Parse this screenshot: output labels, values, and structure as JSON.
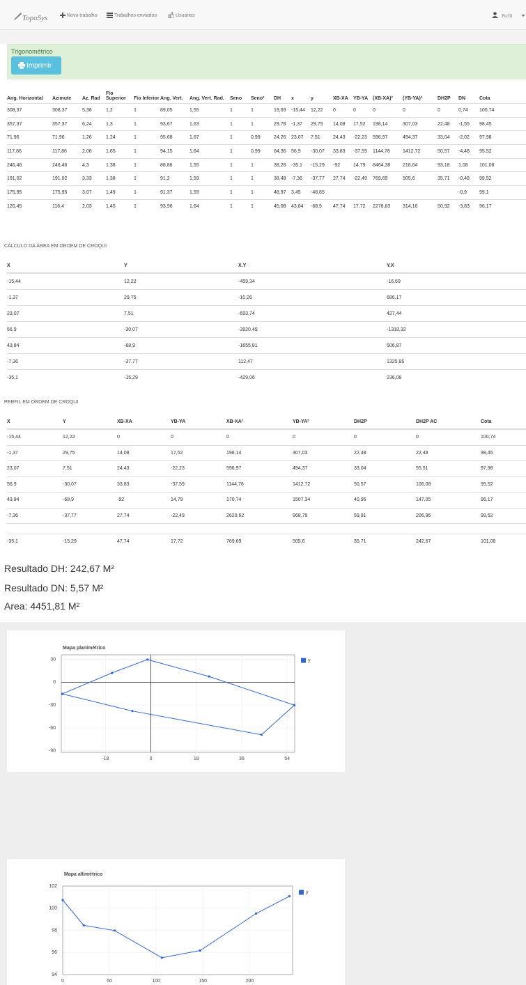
{
  "nav": {
    "brand": "TopoSys",
    "items": [
      "Novo trabalho",
      "Trabalhos enviados",
      "Usuarios"
    ],
    "profile": "Perfil"
  },
  "panel": {
    "title": "Trigonométrico",
    "button": "Imprimir"
  },
  "table1": {
    "headers": [
      "Ang. Horizontal",
      "Azimute",
      "Az. Rad",
      "Fio Superior",
      "Fio Inferior",
      "Ang. Vert.",
      "Ang. Vert. Rad.",
      "Seno",
      "Seno²",
      "DH",
      "x",
      "y",
      "XB-XA",
      "YB-YA",
      "(XB-XA)²",
      "(YB-YA)²",
      "DH2P",
      "DN",
      "Cota"
    ],
    "rows": [
      [
        "308,37",
        "308,37",
        "5,38",
        "1,2",
        "1",
        "89,05",
        "1,55",
        "1",
        "1",
        "19,69",
        "-15,44",
        "12,22",
        "0",
        "0",
        "0",
        "0",
        "0",
        "0,74",
        "100,74"
      ],
      [
        "357,37",
        "357,37",
        "6,24",
        "1,3",
        "1",
        "93,67",
        "1,63",
        "1",
        "1",
        "29,78",
        "-1,37",
        "29,75",
        "14,08",
        "17,52",
        "198,14",
        "307,03",
        "22,48",
        "-1,55",
        "98,45"
      ],
      [
        "71,96",
        "71,96",
        "1,26",
        "1,24",
        "1",
        "95,68",
        "1,67",
        "1",
        "0,99",
        "24,26",
        "23,07",
        "7,51",
        "24,43",
        "-22,23",
        "596,97",
        "494,37",
        "33,04",
        "-2,02",
        "97,98"
      ],
      [
        "117,86",
        "117,86",
        "2,06",
        "1,65",
        "1",
        "94,15",
        "1,64",
        "1",
        "0,99",
        "64,36",
        "56,9",
        "-30,07",
        "33,83",
        "-37,59",
        "1144,78",
        "1412,72",
        "50,57",
        "-4,48",
        "95,52"
      ],
      [
        "246,46",
        "246,46",
        "4,3",
        "1,38",
        "1",
        "88,86",
        "1,55",
        "1",
        "1",
        "38,28",
        "-35,1",
        "-15,29",
        "-92",
        "14,79",
        "8464,38",
        "218,64",
        "93,18",
        "1,08",
        "101,08"
      ],
      [
        "191,02",
        "191,02",
        "3,33",
        "1,38",
        "1",
        "91,2",
        "1,59",
        "1",
        "1",
        "38,48",
        "-7,36",
        "-37,77",
        "27,74",
        "-22,49",
        "769,69",
        "505,6",
        "35,71",
        "-0,48",
        "99,52"
      ],
      [
        "175,95",
        "175,95",
        "3,07",
        "1,49",
        "1",
        "91,37",
        "1,59",
        "1",
        "1",
        "48,97",
        "3,45",
        "-48,85",
        null,
        null,
        null,
        null,
        null,
        "-0,9",
        "99,1"
      ],
      [
        "120,45",
        "116,4",
        "2,03",
        "1,45",
        "1",
        "93,96",
        "1,64",
        "1",
        "1",
        "45,08",
        "43,84",
        "-68,9",
        "47,74",
        "17,72",
        "2278,83",
        "314,16",
        "50,92",
        "-3,83",
        "96,17"
      ]
    ]
  },
  "table2": {
    "title": "CÁLCULO DA ÁREA EM ORDEM DE CROQUI",
    "headers": [
      "X",
      "Y",
      "X.Y",
      "Y.X"
    ],
    "rows": [
      [
        "-15,44",
        "12,22",
        "-459,34",
        "-16,69"
      ],
      [
        "-1,37",
        "29,75",
        "-10,26",
        "686,17"
      ],
      [
        "23,07",
        "7,51",
        "-693,74",
        "427,44"
      ],
      [
        "56,9",
        "-30,07",
        "-3920,49",
        "-1318,32"
      ],
      [
        "43,84",
        "-68,9",
        "-1655,81",
        "506,87"
      ],
      [
        "-7,36",
        "-37,77",
        "112,47",
        "1325,85"
      ],
      [
        "-35,1",
        "-15,29",
        "-429,06",
        "236,08"
      ]
    ]
  },
  "table3": {
    "title": "PERFIL EM ORDEM DE CROQUI",
    "headers": [
      "X",
      "Y",
      "XB-XA",
      "YB-YA",
      "XB-XA²",
      "YB-YA²",
      "DH2P",
      "DH2P AC",
      "Cota"
    ],
    "rows": [
      [
        "-15,44",
        "12,22",
        "0",
        "0",
        "0",
        "0",
        "0",
        "0",
        "100,74"
      ],
      [
        "-1,37",
        "29,75",
        "14,08",
        "17,52",
        "198,14",
        "307,03",
        "22,48",
        "22,48",
        "98,45"
      ],
      [
        "23,07",
        "7,51",
        "24,43",
        "-22,23",
        "596,97",
        "494,37",
        "33,04",
        "55,51",
        "97,98"
      ],
      [
        "56,9",
        "-30,07",
        "33,83",
        "-37,59",
        "1144,78",
        "1412,72",
        "50,57",
        "106,08",
        "95,52"
      ],
      [
        "43,84",
        "-68,9",
        "-92",
        "14,79",
        "170,74",
        "1507,34",
        "40,96",
        "147,05",
        "96,17"
      ],
      [
        "-7,36",
        "-37,77",
        "27,74",
        "-22,49",
        "2620,62",
        "968,79",
        "59,91",
        "206,96",
        "99,52"
      ],
      [
        "-35,1",
        "-15,29",
        "47,74",
        "17,72",
        "769,69",
        "505,6",
        "35,71",
        "242,67",
        "101,08"
      ]
    ]
  },
  "results": [
    "Resultado DH: 242,67 M²",
    "Resultado DN: 5,57 M²",
    "Area: 4451,81 M²"
  ],
  "chart_data": [
    {
      "type": "line",
      "title": "Mapa planimétrico",
      "legend": "right",
      "grid": true,
      "x": [
        -35.1,
        -15.44,
        -1.37,
        23.07,
        56.9,
        43.84,
        -7.36,
        -35.1
      ],
      "series": [
        {
          "name": "y",
          "color": "#3366cc",
          "values": [
            -15.29,
            12.22,
            29.75,
            7.51,
            -30.07,
            -68.9,
            -37.77,
            -15.29
          ]
        }
      ],
      "xlim": [
        -35.5,
        57
      ],
      "xticks": [
        -18,
        0,
        18,
        36,
        54
      ],
      "ylim": [
        -92,
        36
      ],
      "yticks": [
        30,
        0,
        -30,
        -60,
        -90
      ]
    },
    {
      "type": "line",
      "title": "Mapa altimétrico",
      "legend": "right",
      "grid": true,
      "x": [
        0,
        22.48,
        55.51,
        106.08,
        147.05,
        206.96,
        242.67
      ],
      "series": [
        {
          "name": "y",
          "color": "#3366cc",
          "values": [
            100.74,
            98.45,
            97.98,
            95.52,
            96.17,
            99.52,
            101.08
          ]
        }
      ],
      "xlim": [
        0,
        246
      ],
      "xticks": [
        0,
        50,
        100,
        150,
        200
      ],
      "ylim": [
        94,
        102
      ],
      "yticks": [
        94,
        96,
        98,
        100,
        102
      ]
    }
  ]
}
